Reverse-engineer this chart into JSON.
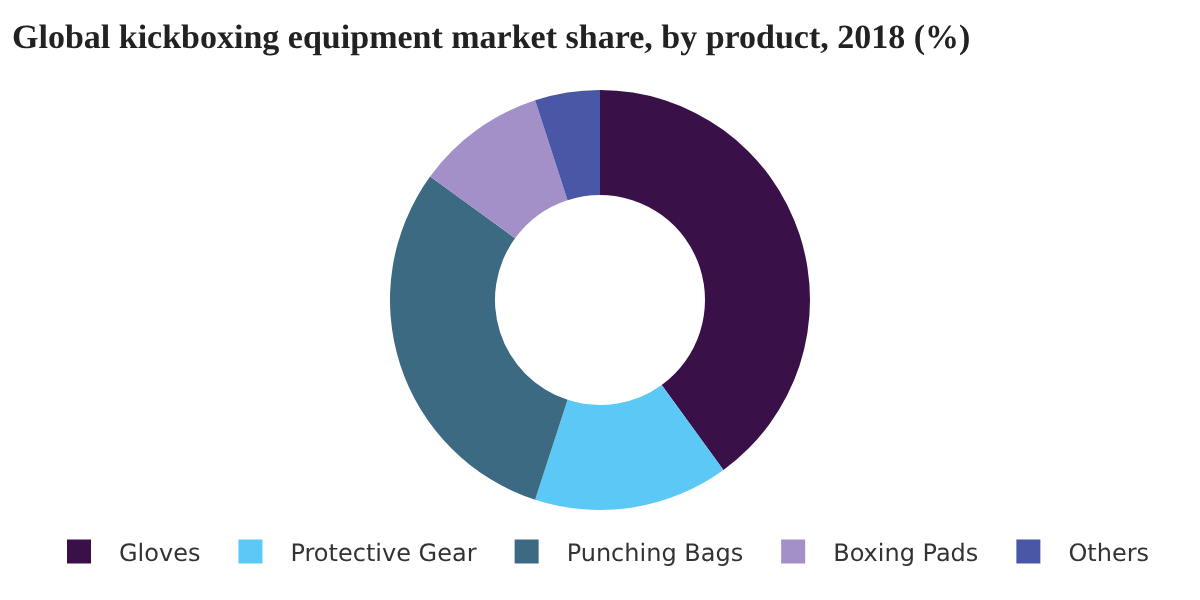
{
  "chart_data": {
    "type": "donut",
    "title": "Global kickboxing equipment market share, by product, 2018 (%)",
    "categories": [
      "Gloves",
      "Protective Gear",
      "Punching Bags",
      "Boxing Pads",
      "Others"
    ],
    "values": [
      40,
      15,
      30,
      10,
      5
    ],
    "colors": [
      "#3a1048",
      "#5bc8f5",
      "#3b6a82",
      "#a390c8",
      "#4a56a6"
    ],
    "legend": "bottom"
  }
}
